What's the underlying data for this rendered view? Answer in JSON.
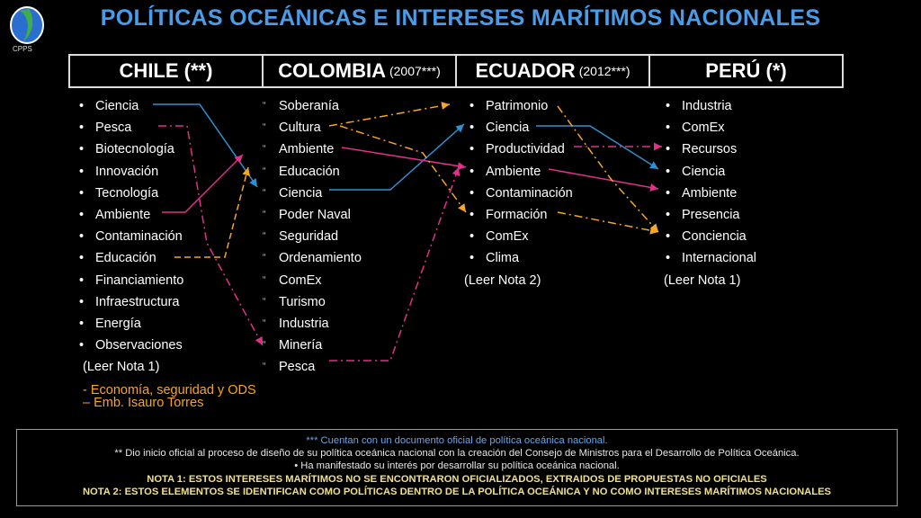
{
  "logo": {
    "label": "CPPS"
  },
  "title": "POLÍTICAS OCEÁNICAS E INTERESES MARÍTIMOS NACIONALES",
  "headers": [
    {
      "main": "CHILE (**)",
      "sub": ""
    },
    {
      "main": "COLOMBIA",
      "sub": "(2007***)"
    },
    {
      "main": "ECUADOR",
      "sub": "(2012***)"
    },
    {
      "main": "PERÚ (*)",
      "sub": ""
    }
  ],
  "chile": {
    "items": [
      "Ciencia",
      "Pesca",
      "Biotecnología",
      "Innovación",
      "Tecnología",
      "Ambiente",
      "Contaminación",
      "Educación",
      "Financiamiento",
      "Infraestructura",
      "Energía",
      "Observaciones"
    ],
    "note": "(Leer Nota 1)",
    "extra": "- Economía, seguridad y ODS – Emb. Isauro Torres"
  },
  "colombia": {
    "items": [
      "Soberanía",
      "Cultura",
      "Ambiente",
      "Educación",
      "Ciencia",
      "Poder Naval",
      "Seguridad",
      "Ordenamiento",
      "ComEx",
      "Turismo",
      "Industria",
      "Minería",
      "Pesca"
    ]
  },
  "ecuador": {
    "items": [
      "Patrimonio",
      "Ciencia",
      "Productividad",
      "Ambiente",
      "Contaminación",
      "Formación",
      "ComEx",
      "Clima"
    ],
    "note": "(Leer Nota 2)"
  },
  "peru": {
    "items": [
      "Industria",
      "ComEx",
      "Recursos",
      "Ciencia",
      "Ambiente",
      "Presencia",
      "Conciencia",
      "Internacional"
    ],
    "note": "(Leer Nota 1)"
  },
  "footer": {
    "line1": "*** Cuentan con un documento oficial de política oceánica nacional.",
    "line2": "** Dio inicio oficial al proceso de diseño de su política oceánica nacional con la creación del Consejo de Ministros para el Desarrollo de Política Oceánica.",
    "line3": "• Ha manifestado su interés por desarrollar su política oceánica nacional.",
    "nota1": "NOTA 1: ESTOS INTERESES MARÍTIMOS NO SE ENCONTRARON OFICIALIZADOS, EXTRAIDOS DE PROPUESTAS NO OFICIALES",
    "nota2": "NOTA 2: ESTOS ELEMENTOS SE IDENTIFICAN COMO POLÍTICAS DENTRO DE LA POLÍTICA OCEÁNICA Y NO COMO INTERESES MARÍTIMOS NACIONALES"
  },
  "colors": {
    "title": "#4a9be8",
    "blue_link": "#2f8fd0",
    "magenta_link": "#e0308a",
    "orange_link": "#f5a623"
  }
}
